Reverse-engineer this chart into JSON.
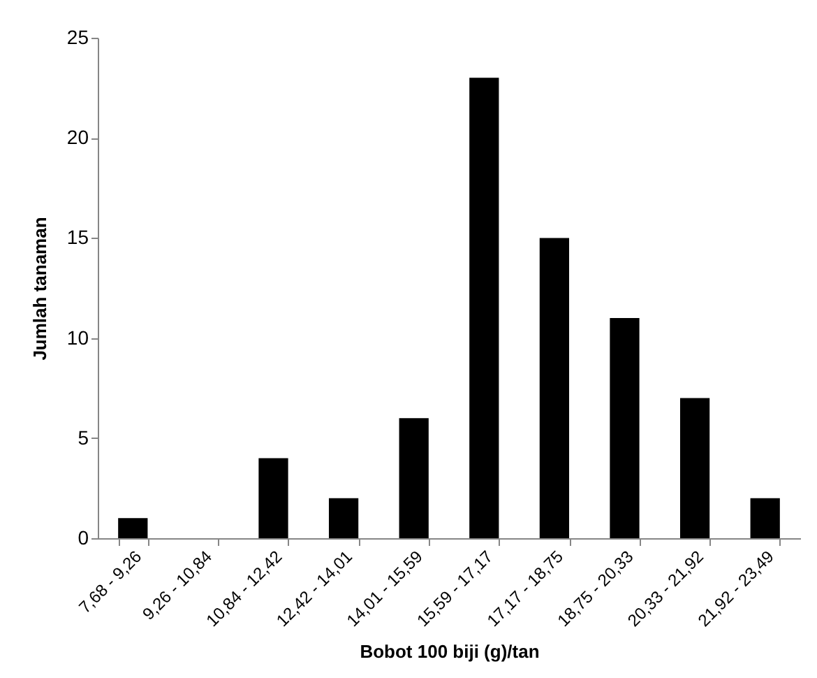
{
  "chart_data": {
    "type": "bar",
    "xlabel": "Bobot 100 biji (g)/tan",
    "ylabel": "Jumlah tanaman",
    "categories": [
      "7,68 - 9,26",
      "9,26 - 10,84",
      "10,84 - 12,42",
      "12,42 - 14,01",
      "14,01 - 15,59",
      "15,59 - 17,17",
      "17,17 - 18,75",
      "18,75 - 20,33",
      "20,33 - 21,92",
      "21,92 - 23,49"
    ],
    "values": [
      1,
      0,
      4,
      2,
      6,
      23,
      15,
      11,
      7,
      2
    ],
    "color": "#000000",
    "ylim": [
      0,
      25
    ],
    "yticks": [
      0,
      5,
      10,
      15,
      20,
      25
    ]
  }
}
